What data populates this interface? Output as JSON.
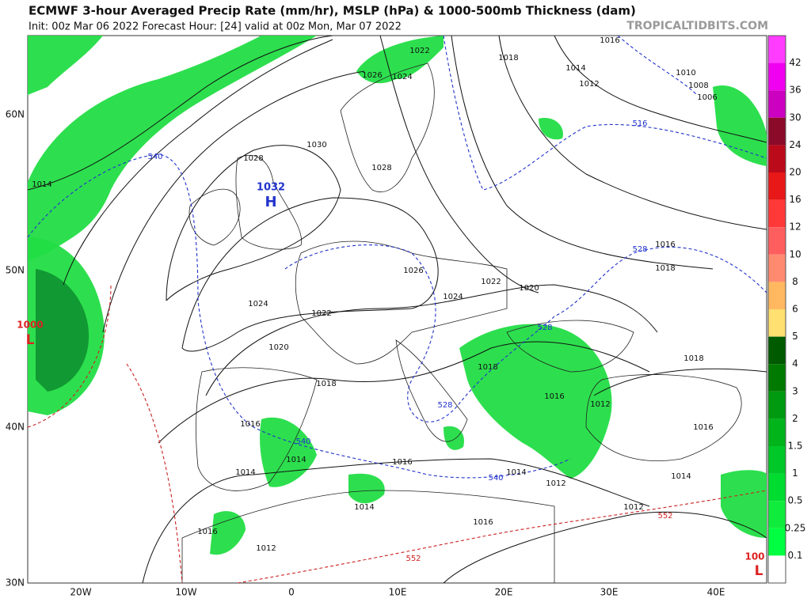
{
  "header": {
    "title": "ECMWF 3-hour Averaged Precip Rate (mm/hr), MSLP (hPa) & 1000-500mb Thickness (dam)",
    "subtitle": "Init: 00z Mar 06 2022   Forecast Hour: [24]   valid at 00z Mon, Mar 07 2022",
    "watermark": "TROPICALTIDBITS.COM"
  },
  "map": {
    "latitudes": [
      "60N",
      "50N",
      "40N",
      "30N"
    ],
    "longitudes": [
      "20W",
      "10W",
      "0",
      "10E",
      "20E",
      "30E",
      "40E"
    ],
    "high_marker": "H",
    "low_marker": "L",
    "contour_labels": [
      "1022",
      "1026",
      "1024",
      "1018",
      "1016",
      "1014",
      "1012",
      "1010",
      "1008",
      "1006",
      "1030",
      "1028",
      "1028",
      "1014",
      "1032",
      "1026",
      "1022",
      "1020",
      "1024",
      "1024",
      "1022",
      "1020",
      "1016",
      "1018",
      "1018",
      "1018",
      "1018",
      "1016",
      "1012",
      "1016",
      "1016",
      "1014",
      "1016",
      "1014",
      "1014",
      "1014",
      "1012",
      "1014",
      "1012",
      "1016",
      "1016",
      "1012",
      "1000",
      "100"
    ],
    "thickness_labels": [
      "540",
      "516",
      "528",
      "528",
      "528",
      "540",
      "540",
      "552",
      "552"
    ]
  },
  "colorbar": {
    "labels": [
      42,
      36,
      30,
      24,
      20,
      16,
      12,
      10,
      8,
      6,
      5,
      4,
      3,
      2,
      1.5,
      1,
      0.5,
      0.25,
      0.1
    ]
  }
}
